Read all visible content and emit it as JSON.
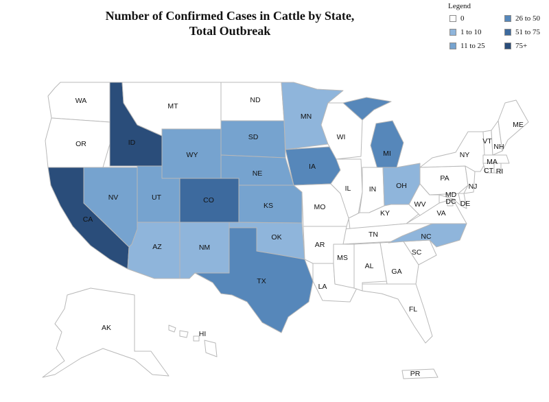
{
  "title": {
    "line1": "Number of Confirmed Cases in Cattle by State,",
    "line2": "Total Outbreak"
  },
  "legend": {
    "title": "Legend",
    "items": [
      {
        "label": "0",
        "color": "#ffffff"
      },
      {
        "label": "1 to 10",
        "color": "#8fb5db"
      },
      {
        "label": "11 to 25",
        "color": "#76a3cf"
      },
      {
        "label": "26 to 50",
        "color": "#5687ba"
      },
      {
        "label": "51 to 75",
        "color": "#3d6a9e"
      },
      {
        "label": "75+",
        "color": "#2a4d7a"
      }
    ]
  },
  "states": [
    {
      "abbr": "WA",
      "category": "0"
    },
    {
      "abbr": "OR",
      "category": "0"
    },
    {
      "abbr": "CA",
      "category": "75+"
    },
    {
      "abbr": "ID",
      "category": "75+"
    },
    {
      "abbr": "NV",
      "category": "11 to 25"
    },
    {
      "abbr": "MT",
      "category": "0"
    },
    {
      "abbr": "WY",
      "category": "11 to 25"
    },
    {
      "abbr": "UT",
      "category": "11 to 25"
    },
    {
      "abbr": "CO",
      "category": "51 to 75"
    },
    {
      "abbr": "AZ",
      "category": "1 to 10"
    },
    {
      "abbr": "NM",
      "category": "1 to 10"
    },
    {
      "abbr": "ND",
      "category": "0"
    },
    {
      "abbr": "SD",
      "category": "11 to 25"
    },
    {
      "abbr": "NE",
      "category": "11 to 25"
    },
    {
      "abbr": "KS",
      "category": "11 to 25"
    },
    {
      "abbr": "OK",
      "category": "1 to 10"
    },
    {
      "abbr": "TX",
      "category": "26 to 50"
    },
    {
      "abbr": "MN",
      "category": "1 to 10"
    },
    {
      "abbr": "IA",
      "category": "26 to 50"
    },
    {
      "abbr": "MO",
      "category": "0"
    },
    {
      "abbr": "AR",
      "category": "0"
    },
    {
      "abbr": "LA",
      "category": "0"
    },
    {
      "abbr": "WI",
      "category": "0"
    },
    {
      "abbr": "IL",
      "category": "0"
    },
    {
      "abbr": "MI",
      "category": "26 to 50"
    },
    {
      "abbr": "IN",
      "category": "0"
    },
    {
      "abbr": "OH",
      "category": "1 to 10"
    },
    {
      "abbr": "KY",
      "category": "0"
    },
    {
      "abbr": "TN",
      "category": "0"
    },
    {
      "abbr": "MS",
      "category": "0"
    },
    {
      "abbr": "AL",
      "category": "0"
    },
    {
      "abbr": "GA",
      "category": "0"
    },
    {
      "abbr": "FL",
      "category": "0"
    },
    {
      "abbr": "SC",
      "category": "0"
    },
    {
      "abbr": "NC",
      "category": "1 to 10"
    },
    {
      "abbr": "VA",
      "category": "0"
    },
    {
      "abbr": "WV",
      "category": "0"
    },
    {
      "abbr": "MD",
      "category": "0"
    },
    {
      "abbr": "DC",
      "category": "0"
    },
    {
      "abbr": "DE",
      "category": "0"
    },
    {
      "abbr": "PA",
      "category": "0"
    },
    {
      "abbr": "NJ",
      "category": "0"
    },
    {
      "abbr": "NY",
      "category": "0"
    },
    {
      "abbr": "CT",
      "category": "0"
    },
    {
      "abbr": "RI",
      "category": "0"
    },
    {
      "abbr": "MA",
      "category": "0"
    },
    {
      "abbr": "VT",
      "category": "0"
    },
    {
      "abbr": "NH",
      "category": "0"
    },
    {
      "abbr": "ME",
      "category": "0"
    },
    {
      "abbr": "AK",
      "category": "0"
    },
    {
      "abbr": "HI",
      "category": "0"
    },
    {
      "abbr": "PR",
      "category": "0"
    }
  ]
}
